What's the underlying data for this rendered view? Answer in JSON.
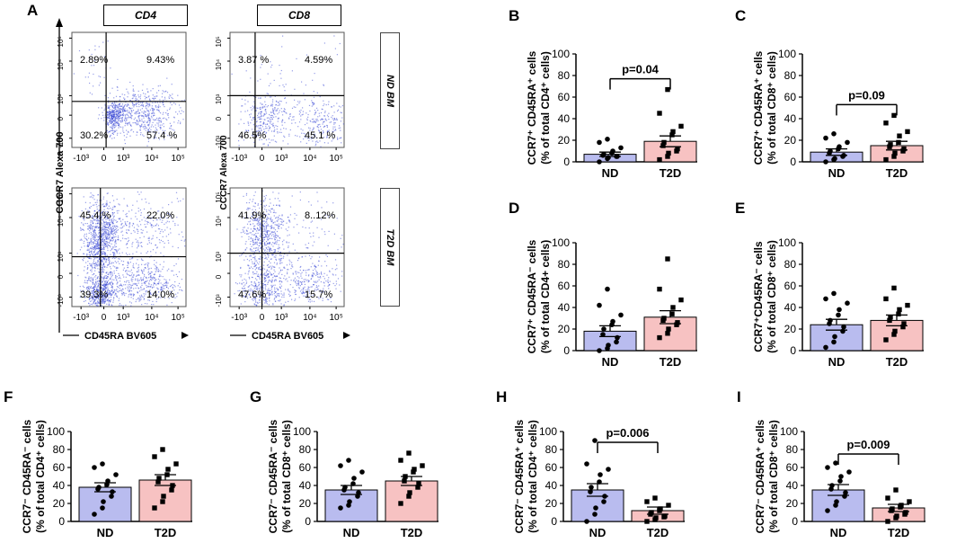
{
  "panel_labels": {
    "A": "A",
    "B": "B",
    "C": "C",
    "D": "D",
    "E": "E",
    "F": "F",
    "G": "G",
    "H": "H",
    "I": "I"
  },
  "flow": {
    "col_labels": [
      "CD4",
      "CD8"
    ],
    "row_labels": [
      "ND BM",
      "T2D BM"
    ],
    "row_colors": [
      "#bcbcf2",
      "#f7c6cf"
    ],
    "y_axis_label": "CCCR7 Alexa 700",
    "y_axis_label_small": "CCCR7 Alexa 700",
    "x_axis_label": "CD45RA BV605",
    "x_ticks": [
      "-10³",
      "0",
      "10³",
      "10⁴",
      "10⁵"
    ],
    "y_ticks": [
      "10⁵",
      "10⁴",
      "10³",
      "0",
      "-10³"
    ],
    "plots": [
      {
        "name": "nd-cd4",
        "q": [
          "2.89%",
          "9.43%",
          "30.2%",
          "57.4 %"
        ]
      },
      {
        "name": "nd-cd8",
        "q": [
          "3.87 %",
          "4.59%",
          "46.5%",
          "45.1 %"
        ]
      },
      {
        "name": "t2d-cd4",
        "q": [
          "45.4.%",
          "22.0%",
          "39.3%",
          "14.0%"
        ]
      },
      {
        "name": "t2d-cd8",
        "q": [
          "41.9%",
          "8..12%",
          "47.6%",
          "15.7%"
        ]
      }
    ]
  },
  "chart_data": [
    {
      "panel": "B",
      "type": "bar",
      "categories": [
        "ND",
        "T2D"
      ],
      "values": [
        7,
        19
      ],
      "sem": [
        2,
        5
      ],
      "points": [
        [
          0,
          3,
          4,
          5,
          5,
          6,
          7,
          8,
          10,
          13,
          18,
          21
        ],
        [
          2,
          5,
          8,
          10,
          12,
          15,
          18,
          25,
          28,
          33,
          45,
          67
        ]
      ],
      "ylim": [
        0,
        100
      ],
      "yticks": [
        0,
        20,
        40,
        60,
        80,
        100
      ],
      "ylabel_main": "CCR7⁺ CD45RA⁺ cells",
      "ylabel_sub": "(% of total CD4⁺ cells)",
      "pvalue": "p=0.04",
      "colors": [
        "#b9bcef",
        "#f7c2c2"
      ]
    },
    {
      "panel": "C",
      "type": "bar",
      "categories": [
        "ND",
        "T2D"
      ],
      "values": [
        9,
        15
      ],
      "sem": [
        3,
        4
      ],
      "points": [
        [
          0,
          2,
          3,
          5,
          6,
          8,
          10,
          12,
          14,
          18,
          22,
          26
        ],
        [
          2,
          5,
          8,
          10,
          12,
          14,
          16,
          18,
          24,
          28,
          36,
          43
        ]
      ],
      "ylim": [
        0,
        100
      ],
      "yticks": [
        0,
        20,
        40,
        60,
        80,
        100
      ],
      "ylabel_main": "CCR7⁺ CD45RA⁺ cells",
      "ylabel_sub": "(% of total CD8⁺ cells)",
      "pvalue": "p=0.09",
      "colors": [
        "#b9bcef",
        "#f7c2c2"
      ]
    },
    {
      "panel": "D",
      "type": "bar",
      "categories": [
        "ND",
        "T2D"
      ],
      "values": [
        18,
        31
      ],
      "sem": [
        5,
        6
      ],
      "points": [
        [
          0,
          2,
          5,
          8,
          12,
          15,
          20,
          24,
          27,
          33,
          42,
          57
        ],
        [
          12,
          16,
          20,
          24,
          26,
          28,
          30,
          34,
          40,
          47,
          57,
          85
        ]
      ],
      "ylim": [
        0,
        100
      ],
      "yticks": [
        0,
        20,
        40,
        60,
        80,
        100
      ],
      "ylabel_main": "CCR7⁺ CD45RA⁻ cells",
      "ylabel_sub": "(% of total CD4+ cells)",
      "pvalue": "",
      "colors": [
        "#b9bcef",
        "#f7c2c2"
      ]
    },
    {
      "panel": "E",
      "type": "bar",
      "categories": [
        "ND",
        "T2D"
      ],
      "values": [
        24,
        28
      ],
      "sem": [
        5,
        5
      ],
      "points": [
        [
          3,
          8,
          13,
          18,
          22,
          25,
          28,
          33,
          38,
          44,
          48,
          53
        ],
        [
          10,
          15,
          18,
          22,
          25,
          28,
          31,
          34,
          38,
          42,
          48,
          58
        ]
      ],
      "ylim": [
        0,
        100
      ],
      "yticks": [
        0,
        20,
        40,
        60,
        80,
        100
      ],
      "ylabel_main": "CCR7⁺CD45RA⁻ cells",
      "ylabel_sub": "(% of total CD8⁺ cells)",
      "pvalue": "",
      "colors": [
        "#b9bcef",
        "#f7c2c2"
      ]
    },
    {
      "panel": "F",
      "type": "bar",
      "categories": [
        "ND",
        "T2D"
      ],
      "values": [
        38,
        46
      ],
      "sem": [
        5,
        6
      ],
      "points": [
        [
          8,
          15,
          22,
          28,
          33,
          36,
          38,
          41,
          45,
          52,
          60,
          64
        ],
        [
          15,
          22,
          28,
          35,
          40,
          44,
          48,
          52,
          58,
          64,
          72,
          80
        ]
      ],
      "ylim": [
        0,
        100
      ],
      "yticks": [
        0,
        20,
        40,
        60,
        80,
        100
      ],
      "ylabel_main": "CCR7⁻ CD45RA⁻ cells",
      "ylabel_sub": "(% of total CD4⁺ cells)",
      "pvalue": "",
      "colors": [
        "#b9bcef",
        "#f7c2c2"
      ]
    },
    {
      "panel": "G",
      "type": "bar",
      "categories": [
        "ND",
        "T2D"
      ],
      "values": [
        35,
        45
      ],
      "sem": [
        5,
        5
      ],
      "points": [
        [
          15,
          18,
          22,
          28,
          32,
          35,
          38,
          42,
          48,
          55,
          62,
          68
        ],
        [
          20,
          28,
          32,
          38,
          42,
          45,
          50,
          55,
          58,
          62,
          68,
          76
        ]
      ],
      "ylim": [
        0,
        100
      ],
      "yticks": [
        0,
        20,
        40,
        60,
        80,
        100
      ],
      "ylabel_main": "CCR7⁻ CD45RA⁻ cells",
      "ylabel_sub": "(% of total CD8⁺ cells)",
      "pvalue": "",
      "colors": [
        "#b9bcef",
        "#f7c2c2"
      ]
    },
    {
      "panel": "H",
      "type": "bar",
      "categories": [
        "ND",
        "T2D"
      ],
      "values": [
        35,
        12
      ],
      "sem": [
        7,
        4
      ],
      "points": [
        [
          0,
          8,
          15,
          22,
          28,
          33,
          38,
          44,
          52,
          58,
          64,
          90
        ],
        [
          0,
          2,
          4,
          5,
          6,
          8,
          10,
          12,
          14,
          18,
          22,
          26
        ]
      ],
      "ylim": [
        0,
        100
      ],
      "yticks": [
        0,
        20,
        40,
        60,
        80,
        100
      ],
      "ylabel_main": "CCR7⁻ CD45RA⁺ cells",
      "ylabel_sub": "(% of total CD4⁺ cells)",
      "pvalue": "p=0.006",
      "colors": [
        "#b9bcef",
        "#f7c2c2"
      ]
    },
    {
      "panel": "I",
      "type": "bar",
      "categories": [
        "ND",
        "T2D"
      ],
      "values": [
        35,
        15
      ],
      "sem": [
        6,
        4
      ],
      "points": [
        [
          12,
          18,
          22,
          28,
          32,
          36,
          40,
          45,
          50,
          55,
          60,
          65
        ],
        [
          0,
          4,
          6,
          8,
          10,
          12,
          14,
          16,
          18,
          22,
          26,
          35
        ]
      ],
      "ylim": [
        0,
        100
      ],
      "yticks": [
        0,
        20,
        40,
        60,
        80,
        100
      ],
      "ylabel_main": "CCR7⁻ CD45RA⁺ cells",
      "ylabel_sub": "(% of total CD8⁺ cells)",
      "pvalue": "p=0.009",
      "colors": [
        "#b9bcef",
        "#f7c2c2"
      ]
    }
  ]
}
